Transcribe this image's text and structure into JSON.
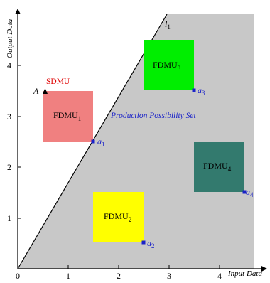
{
  "diagram": {
    "axes": {
      "x_label": "Input Data",
      "y_label": "Output Data",
      "x_ticks": [
        "0",
        "1",
        "2",
        "3",
        "4"
      ],
      "y_ticks": [
        "1",
        "2",
        "3",
        "4"
      ]
    },
    "frontier_label": "l",
    "frontier_label_sub": "1",
    "region_label": "Production Possibility Set",
    "sdmu": {
      "label": "SDMU",
      "point_label": "A"
    },
    "units": [
      {
        "name": "FDMU",
        "sub": "1",
        "color": "#f08080",
        "point": "a",
        "point_sub": "1"
      },
      {
        "name": "FDMU",
        "sub": "2",
        "color": "#ffff00",
        "point": "a",
        "point_sub": "2"
      },
      {
        "name": "FDMU",
        "sub": "3",
        "color": "#00ee00",
        "point": "a",
        "point_sub": "3"
      },
      {
        "name": "FDMU",
        "sub": "4",
        "color": "#337a6e",
        "point": "a",
        "point_sub": "4"
      }
    ],
    "colors": {
      "region": "#c8c8c8",
      "point_marker": "#1a22c8",
      "sdmu_label": "#e00000"
    }
  }
}
